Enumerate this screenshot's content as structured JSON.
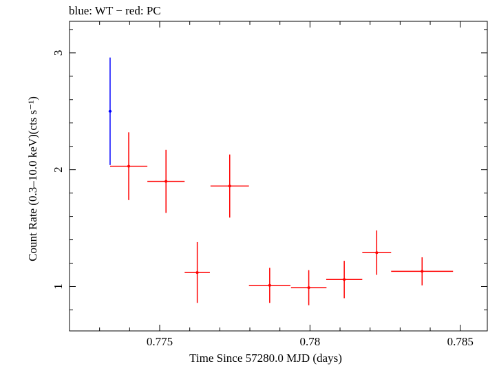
{
  "chart_data": {
    "type": "scatter",
    "title": "blue: WT − red: PC",
    "xlabel": "Time Since 57280.0 MJD (days)",
    "ylabel": "Count Rate (0.3–10.0 keV)(cts s⁻¹)",
    "xlim": [
      0.772,
      0.7859
    ],
    "ylim": [
      0.62,
      3.27
    ],
    "x_ticks": [
      {
        "value": 0.775,
        "label": "0.775"
      },
      {
        "value": 0.78,
        "label": "0.78"
      },
      {
        "value": 0.785,
        "label": "0.785"
      }
    ],
    "y_ticks": [
      {
        "value": 1,
        "label": "1"
      },
      {
        "value": 2,
        "label": "2"
      },
      {
        "value": 3,
        "label": "3"
      }
    ],
    "grid": false,
    "series": [
      {
        "name": "WT",
        "color": "#0000ff",
        "points": [
          {
            "x": 0.77335,
            "xerr": 5e-05,
            "y": 2.5,
            "yerr_low": 0.46,
            "yerr_high": 0.46
          }
        ]
      },
      {
        "name": "PC",
        "color": "#ff0000",
        "points": [
          {
            "x": 0.77397,
            "xerr": 0.00062,
            "y": 2.03,
            "yerr_low": 0.29,
            "yerr_high": 0.29
          },
          {
            "x": 0.77521,
            "xerr": 0.00062,
            "y": 1.9,
            "yerr_low": 0.27,
            "yerr_high": 0.27
          },
          {
            "x": 0.77625,
            "xerr": 0.00042,
            "y": 1.12,
            "yerr_low": 0.26,
            "yerr_high": 0.26
          },
          {
            "x": 0.77733,
            "xerr": 0.00064,
            "y": 1.86,
            "yerr_low": 0.27,
            "yerr_high": 0.27
          },
          {
            "x": 0.77866,
            "xerr": 0.00069,
            "y": 1.01,
            "yerr_low": 0.15,
            "yerr_high": 0.15
          },
          {
            "x": 0.77996,
            "xerr": 0.00059,
            "y": 0.99,
            "yerr_low": 0.15,
            "yerr_high": 0.15
          },
          {
            "x": 0.78114,
            "xerr": 0.0006,
            "y": 1.06,
            "yerr_low": 0.16,
            "yerr_high": 0.16
          },
          {
            "x": 0.78222,
            "xerr": 0.00048,
            "y": 1.29,
            "yerr_low": 0.19,
            "yerr_high": 0.19
          },
          {
            "x": 0.78373,
            "xerr": 0.00103,
            "y": 1.13,
            "yerr_low": 0.12,
            "yerr_high": 0.12
          }
        ]
      }
    ]
  }
}
